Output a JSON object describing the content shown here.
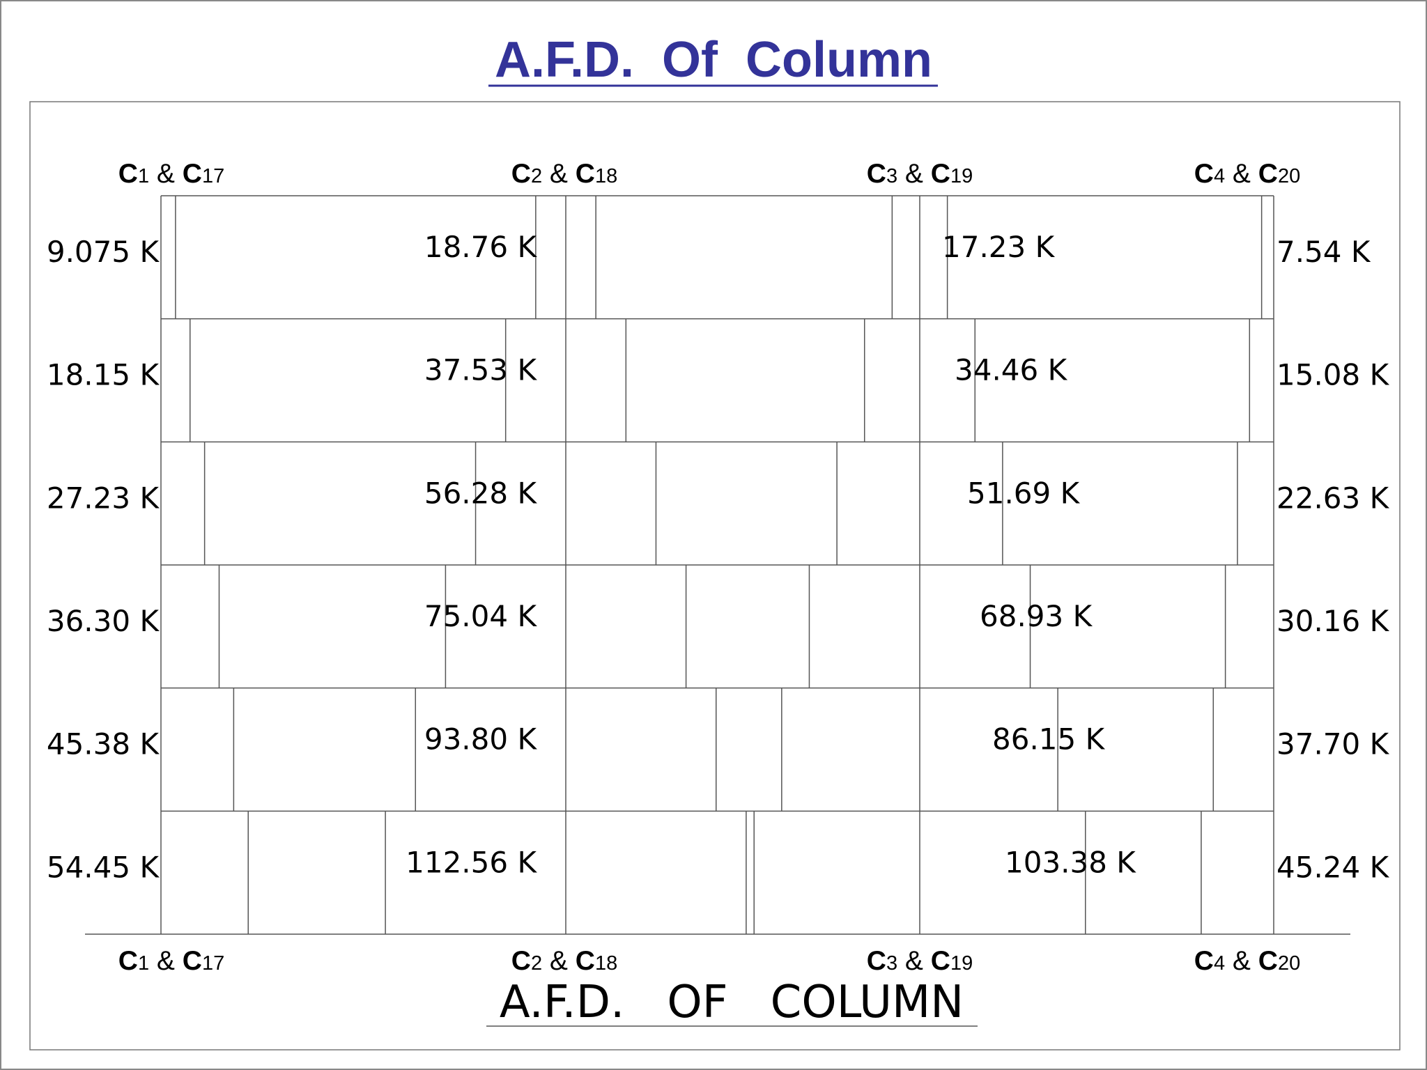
{
  "title": "A.F.D.  Of  Column",
  "subtitle": "A.F.D.   OF   COLUMN",
  "colors": {
    "title": "#333399",
    "line": "#555555",
    "text": "#000000"
  },
  "columns": [
    {
      "id": "c1",
      "name_a": "C",
      "sub_a": "1",
      "joiner": " & ",
      "name_b": "C",
      "sub_b": "17"
    },
    {
      "id": "c2",
      "name_a": "C",
      "sub_a": "2",
      "joiner": " & ",
      "name_b": "C",
      "sub_b": "18"
    },
    {
      "id": "c3",
      "name_a": "C",
      "sub_a": "3",
      "joiner": " & ",
      "name_b": "C",
      "sub_b": "19"
    },
    {
      "id": "c4",
      "name_a": "C",
      "sub_a": "4",
      "joiner": " & ",
      "name_b": "C",
      "sub_b": "20"
    }
  ],
  "load_unit": "K",
  "loads": {
    "c1": [
      "9.075 K",
      "18.15 K",
      "27.23 K",
      "36.30 K",
      "45.38 K",
      "54.45 K"
    ],
    "c2": [
      "18.76 K",
      "37.53 K",
      "56.28 K",
      "75.04 K",
      "93.80 K",
      "112.56 K"
    ],
    "c3": [
      "17.23 K",
      "34.46 K",
      "51.69 K",
      "68.93 K",
      "86.15 K",
      "103.38 K"
    ],
    "c4": [
      "7.54 K",
      "15.08 K",
      "22.63 K",
      "30.16 K",
      "37.70 K",
      "45.24 K"
    ]
  },
  "load_values": {
    "c1": [
      9.075,
      18.15,
      27.23,
      36.3,
      45.38,
      54.45
    ],
    "c2": [
      18.76,
      37.53,
      56.28,
      75.04,
      93.8,
      112.56
    ],
    "c3": [
      17.23,
      34.46,
      51.69,
      68.93,
      86.15,
      103.38
    ],
    "c4": [
      7.54,
      15.08,
      22.63,
      30.16,
      37.7,
      45.24
    ]
  }
}
